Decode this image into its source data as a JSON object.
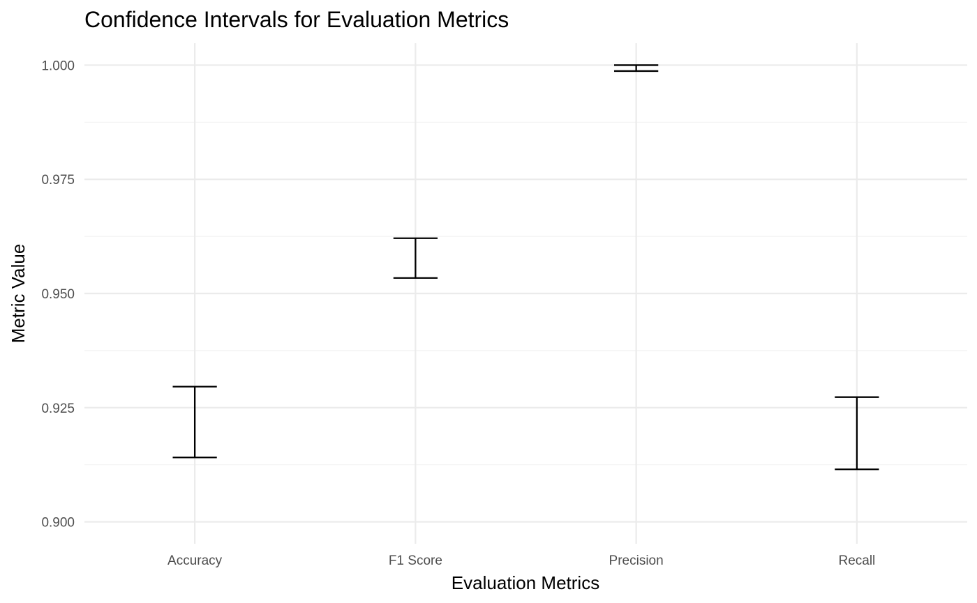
{
  "chart_data": {
    "type": "errorbar",
    "title": "Confidence Intervals for Evaluation Metrics",
    "xlabel": "Evaluation Metrics",
    "ylabel": "Metric Value",
    "categories": [
      "Accuracy",
      "F1 Score",
      "Precision",
      "Recall"
    ],
    "intervals": [
      {
        "category": "Accuracy",
        "lower": 0.9141,
        "upper": 0.9296
      },
      {
        "category": "F1 Score",
        "lower": 0.9534,
        "upper": 0.9621
      },
      {
        "category": "Precision",
        "lower": 0.9987,
        "upper": 1.0
      },
      {
        "category": "Recall",
        "lower": 0.9115,
        "upper": 0.9273
      }
    ],
    "ylim": [
      0.8952,
      1.0048
    ],
    "yticks": [
      0.9,
      0.925,
      0.95,
      0.975,
      1.0
    ],
    "ytick_labels": [
      "0.900",
      "0.925",
      "0.950",
      "0.975",
      "1.000"
    ],
    "grid": true,
    "colors": {
      "errorbar": "#000000",
      "grid_major": "#ebebeb",
      "grid_minor": "#f2f2f2",
      "tick_text": "#4d4d4d",
      "background": "#ffffff"
    }
  }
}
